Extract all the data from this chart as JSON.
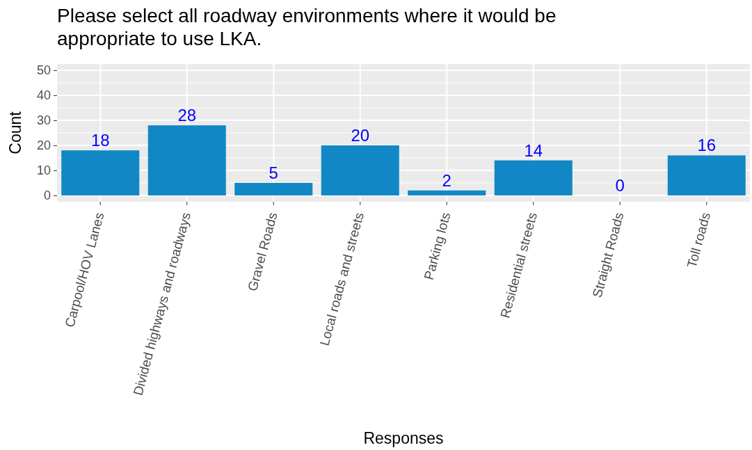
{
  "chart_data": {
    "type": "bar",
    "title": "Please select all roadway environments where it would be appropriate to use LKA.",
    "xlabel": "Responses",
    "ylabel": "Count",
    "categories": [
      "Carpool/HOV Lanes",
      "Divided highways and roadways",
      "Gravel Roads",
      "Local roads and streets",
      "Parking lots",
      "Residential streets",
      "Straight Roads",
      "Toll roads"
    ],
    "values": [
      18,
      28,
      5,
      20,
      2,
      14,
      0,
      16
    ],
    "color": "#1188c5",
    "ylim": [
      -2.5,
      52.5
    ],
    "yticks": [
      0,
      10,
      20,
      30,
      40,
      50
    ],
    "grid": true,
    "data_labels": true
  }
}
